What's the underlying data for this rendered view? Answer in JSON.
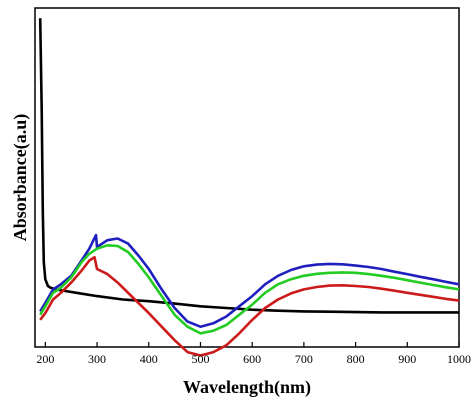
{
  "chart_data": {
    "type": "line",
    "xlabel": "Wavelength(nm)",
    "ylabel": "Absorbance(a.u)",
    "xlim": [
      180,
      1000
    ],
    "ylim": [
      0,
      1.0
    ],
    "x_ticks": [
      200,
      300,
      400,
      500,
      600,
      700,
      800,
      900,
      1000
    ],
    "y_ticks_shown": false,
    "grid": false,
    "legend": "none",
    "series": [
      {
        "color": "#000000",
        "x": [
          190,
          193,
          195,
          197,
          200,
          205,
          210,
          220,
          240,
          260,
          300,
          350,
          400,
          450,
          500,
          550,
          600,
          650,
          700,
          750,
          800,
          850,
          900,
          950,
          1000
        ],
        "y": [
          0.97,
          0.7,
          0.4,
          0.25,
          0.2,
          0.18,
          0.175,
          0.17,
          0.165,
          0.16,
          0.15,
          0.14,
          0.135,
          0.128,
          0.12,
          0.115,
          0.11,
          0.107,
          0.105,
          0.104,
          0.103,
          0.102,
          0.102,
          0.102,
          0.102
        ]
      },
      {
        "color": "#1f1fbf",
        "x": [
          190,
          200,
          215,
          230,
          250,
          270,
          285,
          298,
          300,
          305,
          320,
          340,
          360,
          380,
          400,
          425,
          450,
          475,
          500,
          525,
          550,
          575,
          600,
          625,
          650,
          675,
          700,
          725,
          750,
          775,
          800,
          825,
          850,
          875,
          900,
          925,
          950,
          975,
          1000
        ],
        "y": [
          0.105,
          0.13,
          0.17,
          0.185,
          0.21,
          0.255,
          0.29,
          0.33,
          0.295,
          0.3,
          0.315,
          0.32,
          0.305,
          0.27,
          0.23,
          0.17,
          0.115,
          0.075,
          0.06,
          0.07,
          0.09,
          0.12,
          0.15,
          0.185,
          0.21,
          0.227,
          0.238,
          0.243,
          0.245,
          0.244,
          0.24,
          0.236,
          0.23,
          0.222,
          0.215,
          0.207,
          0.2,
          0.192,
          0.185
        ]
      },
      {
        "color": "#22cc22",
        "x": [
          190,
          200,
          215,
          230,
          250,
          270,
          285,
          300,
          320,
          340,
          360,
          380,
          400,
          425,
          450,
          475,
          500,
          525,
          550,
          575,
          600,
          625,
          650,
          675,
          700,
          725,
          750,
          775,
          800,
          825,
          850,
          875,
          900,
          925,
          950,
          975,
          1000
        ],
        "y": [
          0.095,
          0.12,
          0.16,
          0.175,
          0.205,
          0.25,
          0.275,
          0.29,
          0.3,
          0.298,
          0.28,
          0.245,
          0.205,
          0.15,
          0.095,
          0.06,
          0.04,
          0.048,
          0.065,
          0.095,
          0.125,
          0.16,
          0.185,
          0.2,
          0.21,
          0.216,
          0.219,
          0.22,
          0.219,
          0.215,
          0.21,
          0.204,
          0.197,
          0.19,
          0.183,
          0.176,
          0.17
        ]
      },
      {
        "color": "#cc1a1a",
        "x": [
          190,
          200,
          215,
          230,
          250,
          270,
          285,
          295,
          300,
          320,
          340,
          360,
          380,
          400,
          425,
          450,
          475,
          500,
          525,
          550,
          575,
          600,
          625,
          650,
          675,
          700,
          725,
          750,
          775,
          800,
          825,
          850,
          875,
          900,
          925,
          950,
          975,
          1000
        ],
        "y": [
          0.08,
          0.1,
          0.14,
          0.16,
          0.19,
          0.225,
          0.255,
          0.265,
          0.23,
          0.215,
          0.19,
          0.16,
          0.13,
          0.1,
          0.06,
          0.02,
          -0.015,
          -0.025,
          -0.015,
          0.005,
          0.04,
          0.08,
          0.115,
          0.14,
          0.158,
          0.17,
          0.177,
          0.181,
          0.182,
          0.18,
          0.177,
          0.172,
          0.166,
          0.16,
          0.154,
          0.148,
          0.142,
          0.137
        ]
      }
    ]
  }
}
